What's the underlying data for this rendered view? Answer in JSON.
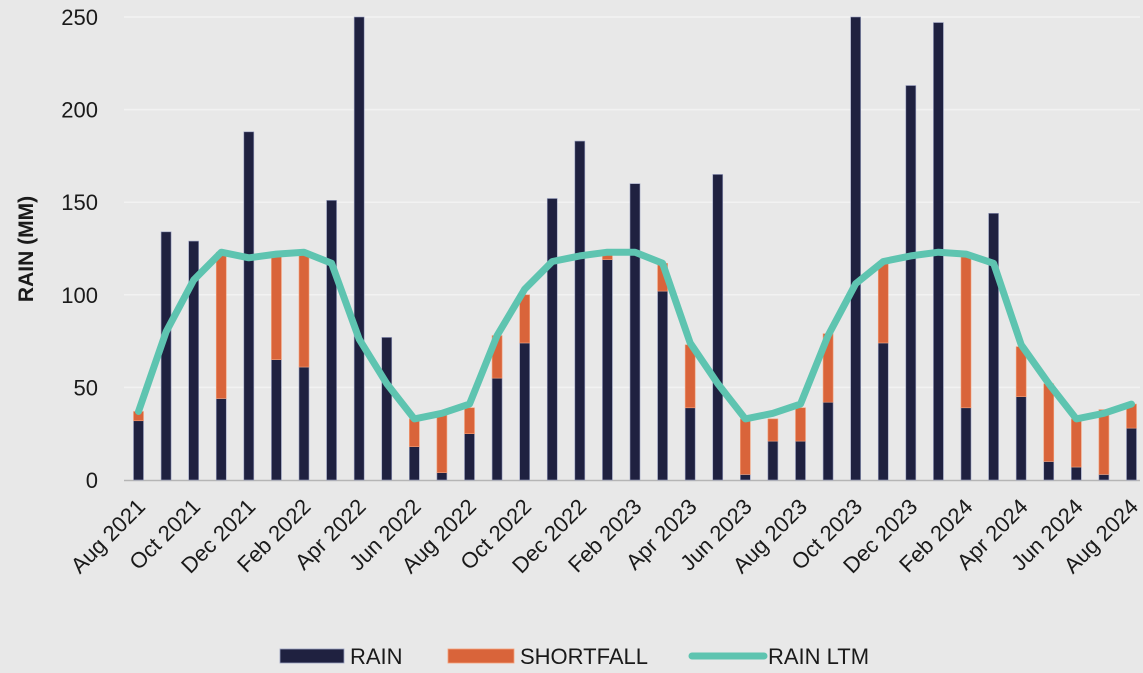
{
  "chart_data": {
    "type": "bar",
    "ylabel": "RAIN (MM)",
    "ylim": [
      0,
      250
    ],
    "yticks": [
      0,
      50,
      100,
      150,
      200,
      250
    ],
    "grid": true,
    "legend_placement": "bottom-center",
    "categories": [
      "Aug 2021",
      "Sep 2021",
      "Oct 2021",
      "Nov 2021",
      "Dec 2021",
      "Jan 2022",
      "Feb 2022",
      "Mar 2022",
      "Apr 2022",
      "May 2022",
      "Jun 2022",
      "Jul 2022",
      "Aug 2022",
      "Sep 2022",
      "Oct 2022",
      "Nov 2022",
      "Dec 2022",
      "Jan 2023",
      "Feb 2023",
      "Mar 2023",
      "Apr 2023",
      "May 2023",
      "Jun 2023",
      "Jul 2023",
      "Aug 2023",
      "Sep 2023",
      "Oct 2023",
      "Nov 2023",
      "Dec 2023",
      "Jan 2024",
      "Feb 2024",
      "Mar 2024",
      "Apr 2024",
      "May 2024",
      "Jun 2024",
      "Jul 2024",
      "Aug 2024"
    ],
    "tick_labels": [
      "Aug 2021",
      "Oct 2021",
      "Dec 2021",
      "Feb 2022",
      "Apr 2022",
      "Jun 2022",
      "Aug 2022",
      "Oct 2022",
      "Dec 2022",
      "Feb 2023",
      "Apr 2023",
      "Jun 2023",
      "Aug 2023",
      "Oct 2023",
      "Dec 2023",
      "Feb 2024",
      "Apr 2024",
      "Jun 2024",
      "Aug 2024"
    ],
    "series": [
      {
        "name": "RAIN",
        "type": "bar",
        "color": "#1f2140",
        "values": [
          32,
          134,
          129,
          44,
          188,
          65,
          61,
          151,
          250,
          77,
          18,
          4,
          25,
          55,
          74,
          152,
          183,
          119,
          160,
          102,
          39,
          165,
          3,
          21,
          21,
          42,
          250,
          74,
          213,
          247,
          39,
          144,
          45,
          10,
          7,
          3,
          28
        ]
      },
      {
        "name": "SHORTFALL",
        "type": "bar-stacked",
        "color": "#d9643a",
        "values": [
          5,
          0,
          0,
          79,
          0,
          56,
          62,
          0,
          0,
          0,
          15,
          31,
          14,
          23,
          26,
          0,
          0,
          3,
          0,
          15,
          34,
          0,
          30,
          12,
          18,
          37,
          0,
          44,
          0,
          0,
          83,
          0,
          27,
          42,
          26,
          35,
          13
        ]
      },
      {
        "name": "RAIN LTM",
        "type": "line",
        "color": "#5ec4b0",
        "values": [
          37,
          80,
          108,
          123,
          120,
          122,
          123,
          117,
          76,
          52,
          33,
          36,
          41,
          78,
          103,
          118,
          121,
          123,
          123,
          117,
          74,
          52,
          33,
          36,
          41,
          78,
          106,
          118,
          121,
          123,
          122,
          117,
          73,
          52,
          33,
          36,
          41
        ]
      }
    ]
  }
}
